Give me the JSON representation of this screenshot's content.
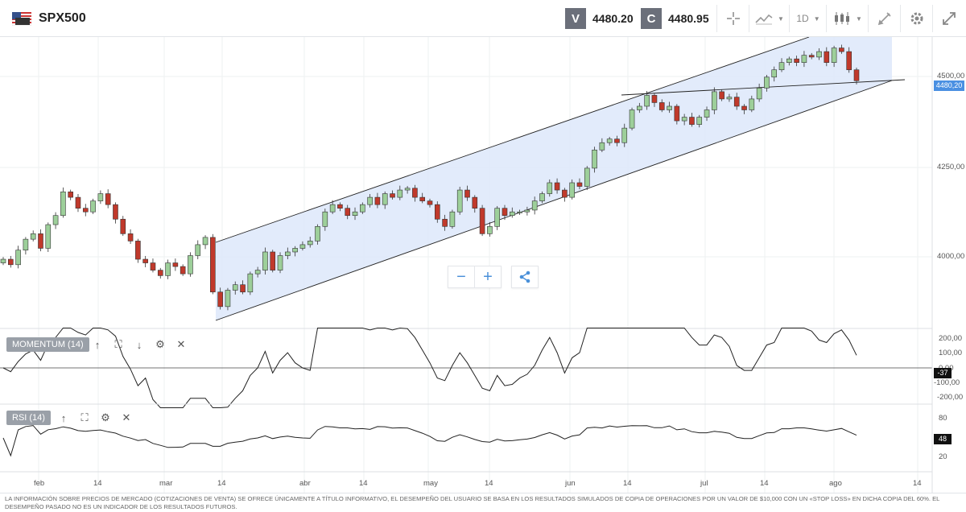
{
  "header": {
    "symbol": "SPX500",
    "sell_badge": "V",
    "sell_price": "4480.20",
    "buy_badge": "C",
    "buy_price": "4480.95",
    "timeframe": "1D",
    "icons": [
      "flag-icon",
      "crosshair-icon",
      "line-chart-icon",
      "candlestick-icon",
      "draw-icon",
      "gear-icon",
      "expand-icon"
    ]
  },
  "chart": {
    "y_ticks": [
      "4500,00",
      "4250,00",
      "4000,00"
    ],
    "current_price_tag": "4480,20",
    "x_ticks": [
      "feb",
      "14",
      "mar",
      "14",
      "abr",
      "14",
      "may",
      "14",
      "jun",
      "14",
      "jul",
      "14",
      "ago",
      "14"
    ]
  },
  "indicators": {
    "momentum": {
      "label": "MOMENTUM (14)",
      "ticks": [
        "200,00",
        "100,00",
        "0,00",
        "-100,00",
        "-200,00"
      ],
      "value_tag": "-37"
    },
    "rsi": {
      "label": "RSI (14)",
      "ticks": [
        "80",
        "20"
      ],
      "value_tag": "48"
    }
  },
  "controls": {
    "zoom_out": "−",
    "zoom_in": "+"
  },
  "colors": {
    "up": "#9dcf9a",
    "down": "#c0392b",
    "channel": "#dde7fa",
    "tag": "#4a90e2"
  },
  "disclaimer": "La información sobre precios de mercado (cotizaciones de venta) se ofrece únicamente a título informativo, el desempeño del usuario se basa en los resultados simulados de copia de operaciones por un valor de $10,000 con un «stop loss» en dicha copia del 60%. El desempeño pasado no es un indicador de los resultados futuros.",
  "chart_data": {
    "type": "candlestick",
    "ylim": [
      3800,
      4600
    ],
    "closes": [
      3990,
      3975,
      4015,
      4045,
      4060,
      4020,
      4085,
      4110,
      4175,
      4160,
      4130,
      4120,
      4150,
      4170,
      4140,
      4100,
      4060,
      4040,
      3990,
      3980,
      3960,
      3945,
      3980,
      3970,
      3950,
      4000,
      4030,
      4050,
      3900,
      3860,
      3905,
      3920,
      3900,
      3950,
      3960,
      4010,
      3960,
      4000,
      4010,
      4020,
      4030,
      4040,
      4080,
      4120,
      4140,
      4130,
      4110,
      4120,
      4140,
      4160,
      4140,
      4170,
      4160,
      4180,
      4185,
      4160,
      4150,
      4140,
      4100,
      4080,
      4120,
      4180,
      4160,
      4130,
      4060,
      4080,
      4130,
      4110,
      4120,
      4120,
      4125,
      4150,
      4170,
      4200,
      4180,
      4160,
      4200,
      4190,
      4240,
      4290,
      4310,
      4320,
      4310,
      4350,
      4400,
      4410,
      4440,
      4420,
      4400,
      4410,
      4370,
      4380,
      4360,
      4380,
      4400,
      4450,
      4430,
      4435,
      4410,
      4400,
      4430,
      4460,
      4490,
      4510,
      4530,
      4540,
      4530,
      4550,
      4545,
      4560,
      4530,
      4570,
      4560,
      4510,
      4480
    ]
  }
}
